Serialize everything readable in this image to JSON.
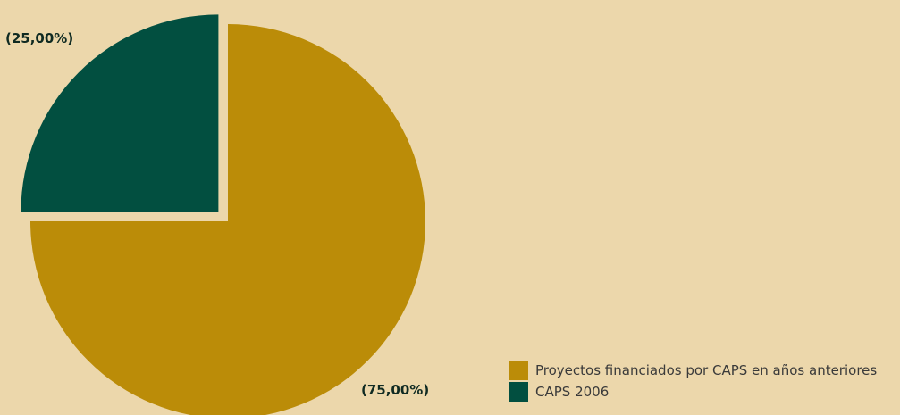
{
  "chart_data": {
    "type": "pie",
    "slices": [
      {
        "label": "Proyectos financiados por CAPS en años anteriores",
        "value": 75.0,
        "display": "(75,00%)",
        "color": "#bb8c08",
        "exploded": false
      },
      {
        "label": "CAPS 2006",
        "value": 25.0,
        "display": "(25,00%)",
        "color": "#024f40",
        "exploded": true
      }
    ],
    "legend_placement": "bottom-right",
    "background": "#ecd7ab"
  }
}
